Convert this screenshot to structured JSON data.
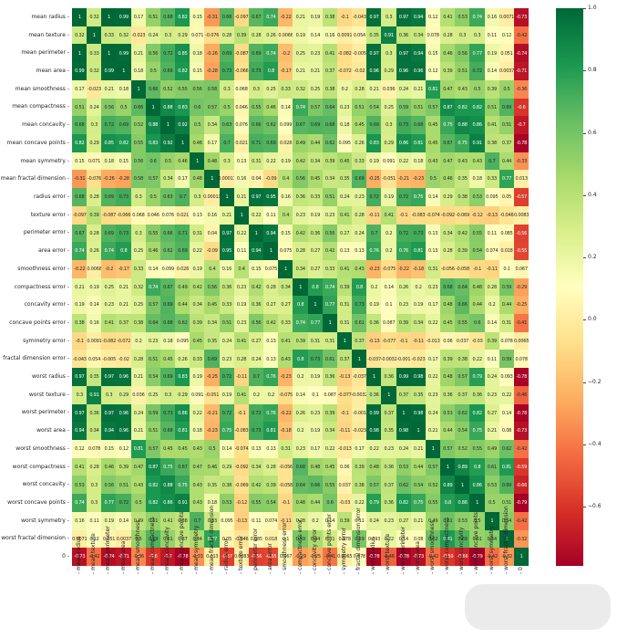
{
  "chart_data": {
    "type": "heatmap",
    "title": "",
    "colormap": "RdYlGn",
    "vmin": -0.79,
    "vmax": 1.0,
    "colorbar_ticks": [
      "1.0",
      "0.8",
      "0.6",
      "0.4",
      "0.2",
      "0.0",
      "−0.2",
      "−0.4",
      "−0.6"
    ],
    "colorbar_tick_values": [
      1.0,
      0.8,
      0.6,
      0.4,
      0.2,
      0.0,
      -0.2,
      -0.4,
      -0.6
    ],
    "labels": [
      "mean radius",
      "mean texture",
      "mean perimeter",
      "mean area",
      "mean smoothness",
      "mean compactness",
      "mean concavity",
      "mean concave points",
      "mean symmetry",
      "mean fractal dimension",
      "radius error",
      "texture error",
      "perimeter error",
      "area error",
      "smoothness error",
      "compactness error",
      "concavity error",
      "concave points error",
      "symmetry error",
      "fractal dimension error",
      "worst radius",
      "worst texture",
      "worst perimeter",
      "worst area",
      "worst smoothness",
      "worst compactness",
      "worst concavity",
      "worst concave points",
      "worst symmetry",
      "worst fractal dimension",
      "0"
    ],
    "matrix": [
      [
        1,
        0.32,
        1,
        0.99,
        0.17,
        0.51,
        0.68,
        0.82,
        0.15,
        -0.31,
        0.68,
        -0.097,
        0.67,
        0.74,
        -0.22,
        0.21,
        0.19,
        0.38,
        -0.1,
        -0.043,
        0.97,
        0.3,
        0.97,
        0.94,
        0.12,
        0.41,
        0.53,
        0.74,
        0.16,
        0.0071,
        -0.73
      ],
      [
        0.32,
        1,
        0.33,
        0.32,
        -0.023,
        0.24,
        0.3,
        0.29,
        0.071,
        -0.076,
        0.28,
        0.39,
        0.28,
        0.26,
        0.0066,
        0.19,
        0.14,
        0.16,
        0.0091,
        0.054,
        0.35,
        0.91,
        0.36,
        0.34,
        0.078,
        0.28,
        0.3,
        0.3,
        0.11,
        0.12,
        -0.42
      ],
      [
        1,
        0.33,
        1,
        0.99,
        0.21,
        0.56,
        0.72,
        0.85,
        0.18,
        -0.26,
        0.69,
        -0.087,
        0.69,
        0.74,
        -0.2,
        0.25,
        0.23,
        0.41,
        -0.082,
        -0.005,
        0.97,
        0.3,
        0.97,
        0.94,
        0.15,
        0.46,
        0.56,
        0.77,
        0.19,
        0.051,
        -0.74
      ],
      [
        0.99,
        0.32,
        0.99,
        1,
        0.18,
        0.5,
        0.69,
        0.82,
        0.15,
        -0.28,
        0.73,
        -0.066,
        0.73,
        0.8,
        -0.17,
        0.21,
        0.21,
        0.37,
        -0.072,
        -0.02,
        0.96,
        0.29,
        0.96,
        0.96,
        0.12,
        0.39,
        0.51,
        0.72,
        0.14,
        0.0037,
        -0.71
      ],
      [
        0.17,
        -0.023,
        0.21,
        0.18,
        1,
        0.66,
        0.52,
        0.55,
        0.56,
        0.58,
        0.3,
        0.068,
        0.3,
        0.25,
        0.33,
        0.32,
        0.25,
        0.38,
        0.2,
        0.28,
        0.21,
        0.036,
        0.24,
        0.21,
        0.81,
        0.47,
        0.43,
        0.5,
        0.39,
        0.5,
        -0.36
      ],
      [
        0.51,
        0.24,
        0.56,
        0.5,
        0.66,
        1,
        0.88,
        0.83,
        0.6,
        0.57,
        0.5,
        0.046,
        0.55,
        0.46,
        0.14,
        0.74,
        0.57,
        0.64,
        0.23,
        0.51,
        0.54,
        0.25,
        0.59,
        0.51,
        0.57,
        0.87,
        0.82,
        0.82,
        0.51,
        0.69,
        -0.6
      ],
      [
        0.68,
        0.3,
        0.72,
        0.69,
        0.52,
        0.88,
        1,
        0.92,
        0.5,
        0.34,
        0.63,
        0.076,
        0.66,
        0.62,
        0.099,
        0.67,
        0.69,
        0.68,
        0.18,
        0.45,
        0.69,
        0.3,
        0.73,
        0.68,
        0.45,
        0.75,
        0.88,
        0.86,
        0.41,
        0.51,
        -0.7
      ],
      [
        0.82,
        0.29,
        0.85,
        0.82,
        0.55,
        0.83,
        0.92,
        1,
        0.46,
        0.17,
        0.7,
        0.021,
        0.71,
        0.69,
        0.028,
        0.49,
        0.44,
        0.62,
        0.095,
        0.26,
        0.83,
        0.29,
        0.86,
        0.81,
        0.45,
        0.67,
        0.75,
        0.91,
        0.38,
        0.37,
        -0.78
      ],
      [
        0.15,
        0.071,
        0.18,
        0.15,
        0.56,
        0.6,
        0.5,
        0.46,
        1,
        0.48,
        0.3,
        0.13,
        0.31,
        0.22,
        0.19,
        0.42,
        0.34,
        0.39,
        0.45,
        0.33,
        0.19,
        0.091,
        0.22,
        0.18,
        0.43,
        0.47,
        0.43,
        0.43,
        0.7,
        0.44,
        -0.33
      ],
      [
        -0.31,
        -0.076,
        -0.26,
        -0.28,
        0.58,
        0.57,
        0.34,
        0.17,
        0.48,
        1,
        0.00011,
        0.16,
        0.04,
        -0.09,
        0.4,
        0.56,
        0.45,
        0.34,
        0.35,
        0.69,
        -0.25,
        -0.051,
        -0.21,
        -0.23,
        0.5,
        0.46,
        0.35,
        0.18,
        0.33,
        0.77,
        0.013
      ],
      [
        0.68,
        0.28,
        0.69,
        0.73,
        0.3,
        0.5,
        0.63,
        0.7,
        0.3,
        0.00011,
        1,
        0.21,
        0.97,
        0.95,
        0.16,
        0.36,
        0.33,
        0.51,
        0.24,
        0.23,
        0.72,
        0.19,
        0.72,
        0.75,
        0.14,
        0.29,
        0.38,
        0.53,
        0.095,
        0.05,
        -0.57
      ],
      [
        -0.097,
        0.39,
        -0.087,
        -0.066,
        0.068,
        0.046,
        0.076,
        0.021,
        0.13,
        0.16,
        0.21,
        1,
        0.22,
        0.11,
        0.4,
        0.23,
        0.19,
        0.23,
        0.41,
        0.28,
        -0.11,
        0.41,
        -0.1,
        -0.083,
        -0.074,
        -0.092,
        -0.069,
        -0.12,
        -0.13,
        -0.046,
        0.0083
      ],
      [
        0.67,
        0.28,
        0.69,
        0.73,
        0.3,
        0.55,
        0.66,
        0.71,
        0.31,
        0.04,
        0.97,
        0.22,
        1,
        0.94,
        0.15,
        0.42,
        0.36,
        0.56,
        0.27,
        0.24,
        0.7,
        0.2,
        0.72,
        0.73,
        0.13,
        0.34,
        0.42,
        0.55,
        0.11,
        0.085,
        -0.56
      ],
      [
        0.74,
        0.26,
        0.74,
        0.8,
        0.25,
        0.46,
        0.62,
        0.69,
        0.22,
        -0.09,
        0.95,
        0.11,
        0.94,
        1,
        0.075,
        0.28,
        0.27,
        0.42,
        0.13,
        0.13,
        0.76,
        0.2,
        0.76,
        0.81,
        0.13,
        0.28,
        0.39,
        0.54,
        0.074,
        0.018,
        -0.55
      ],
      [
        -0.22,
        0.0066,
        -0.2,
        -0.17,
        0.33,
        0.14,
        0.099,
        0.028,
        0.19,
        0.4,
        0.16,
        0.4,
        0.15,
        0.075,
        1,
        0.34,
        0.27,
        0.33,
        0.41,
        0.43,
        -0.23,
        -0.075,
        -0.22,
        -0.18,
        0.31,
        -0.056,
        -0.058,
        -0.1,
        -0.11,
        0.1,
        0.067
      ],
      [
        0.21,
        0.19,
        0.25,
        0.21,
        0.32,
        0.74,
        0.67,
        0.49,
        0.42,
        0.56,
        0.36,
        0.23,
        0.42,
        0.28,
        0.34,
        1,
        0.8,
        0.74,
        0.39,
        0.8,
        0.2,
        0.14,
        0.26,
        0.2,
        0.23,
        0.68,
        0.64,
        0.48,
        0.28,
        0.59,
        -0.29
      ],
      [
        0.19,
        0.14,
        0.23,
        0.21,
        0.25,
        0.57,
        0.69,
        0.44,
        0.34,
        0.45,
        0.33,
        0.19,
        0.36,
        0.27,
        0.27,
        0.8,
        1,
        0.77,
        0.31,
        0.73,
        0.19,
        0.1,
        0.23,
        0.19,
        0.17,
        0.48,
        0.66,
        0.44,
        0.2,
        0.44,
        -0.25
      ],
      [
        0.38,
        0.16,
        0.41,
        0.37,
        0.38,
        0.64,
        0.68,
        0.62,
        0.39,
        0.34,
        0.51,
        0.23,
        0.56,
        0.42,
        0.33,
        0.74,
        0.77,
        1,
        0.31,
        0.61,
        0.36,
        0.087,
        0.39,
        0.34,
        0.22,
        0.45,
        0.55,
        0.6,
        0.14,
        0.31,
        -0.41
      ],
      [
        -0.1,
        0.0091,
        -0.082,
        -0.072,
        0.2,
        0.23,
        0.18,
        0.095,
        0.45,
        0.35,
        0.24,
        0.41,
        0.27,
        0.13,
        0.41,
        0.39,
        0.31,
        0.31,
        1,
        0.37,
        -0.13,
        -0.077,
        -0.1,
        -0.11,
        -0.013,
        0.06,
        0.037,
        -0.03,
        0.39,
        0.078,
        0.0065
      ],
      [
        -0.043,
        0.054,
        -0.005,
        -0.02,
        0.28,
        0.51,
        0.45,
        0.26,
        0.33,
        0.69,
        0.23,
        0.28,
        0.24,
        0.13,
        0.43,
        0.8,
        0.73,
        0.61,
        0.37,
        1,
        -0.037,
        -0.0032,
        -0.001,
        -0.023,
        0.17,
        0.39,
        0.38,
        0.22,
        0.11,
        0.59,
        0.078
      ],
      [
        0.97,
        0.35,
        0.97,
        0.96,
        0.21,
        0.54,
        0.69,
        0.83,
        0.19,
        -0.25,
        0.72,
        -0.11,
        0.7,
        0.76,
        -0.23,
        0.2,
        0.19,
        0.36,
        -0.13,
        -0.037,
        1,
        0.36,
        0.99,
        0.98,
        0.22,
        0.48,
        0.57,
        0.79,
        0.24,
        0.093,
        -0.78
      ],
      [
        0.3,
        0.91,
        0.3,
        0.29,
        0.036,
        0.25,
        0.3,
        0.29,
        0.091,
        -0.051,
        0.19,
        0.41,
        0.2,
        0.2,
        -0.075,
        0.14,
        0.1,
        0.087,
        -0.077,
        -0.0032,
        0.36,
        1,
        0.37,
        0.35,
        0.23,
        0.36,
        0.37,
        0.36,
        0.23,
        0.22,
        -0.46
      ],
      [
        0.97,
        0.36,
        0.97,
        0.96,
        0.24,
        0.59,
        0.73,
        0.86,
        0.22,
        -0.21,
        0.72,
        -0.1,
        0.72,
        0.76,
        -0.22,
        0.26,
        0.23,
        0.39,
        -0.1,
        -0.001,
        0.99,
        0.37,
        1,
        0.98,
        0.24,
        0.53,
        0.62,
        0.82,
        0.27,
        0.14,
        -0.78
      ],
      [
        0.94,
        0.34,
        0.94,
        0.96,
        0.21,
        0.51,
        0.68,
        0.81,
        0.18,
        -0.23,
        0.75,
        -0.083,
        0.73,
        0.81,
        -0.18,
        0.2,
        0.19,
        0.34,
        -0.11,
        -0.023,
        0.98,
        0.35,
        0.98,
        1,
        0.21,
        0.44,
        0.54,
        0.75,
        0.21,
        0.08,
        -0.73
      ],
      [
        0.12,
        0.078,
        0.15,
        0.12,
        0.81,
        0.57,
        0.45,
        0.45,
        0.43,
        0.5,
        0.14,
        -0.074,
        0.13,
        0.13,
        0.31,
        0.23,
        0.17,
        0.22,
        -0.013,
        0.17,
        0.22,
        0.23,
        0.24,
        0.21,
        1,
        0.57,
        0.52,
        0.55,
        0.49,
        0.62,
        -0.42
      ],
      [
        0.41,
        0.28,
        0.46,
        0.39,
        0.47,
        0.87,
        0.75,
        0.67,
        0.47,
        0.46,
        0.29,
        -0.092,
        0.34,
        0.28,
        -0.056,
        0.68,
        0.48,
        0.45,
        0.06,
        0.39,
        0.48,
        0.36,
        0.53,
        0.44,
        0.57,
        1,
        0.89,
        0.8,
        0.61,
        0.81,
        -0.59
      ],
      [
        0.53,
        0.3,
        0.56,
        0.51,
        0.43,
        0.82,
        0.88,
        0.75,
        0.43,
        0.35,
        0.38,
        -0.069,
        0.42,
        0.39,
        -0.058,
        0.64,
        0.66,
        0.55,
        0.037,
        0.38,
        0.57,
        0.37,
        0.62,
        0.54,
        0.52,
        0.89,
        1,
        0.86,
        0.53,
        0.69,
        -0.66
      ],
      [
        0.74,
        0.3,
        0.77,
        0.72,
        0.5,
        0.82,
        0.86,
        0.91,
        0.43,
        0.18,
        0.53,
        -0.12,
        0.55,
        0.54,
        -0.1,
        0.48,
        0.44,
        0.6,
        -0.03,
        0.22,
        0.79,
        0.36,
        0.82,
        0.75,
        0.55,
        0.8,
        0.86,
        1,
        0.5,
        0.51,
        -0.79
      ],
      [
        0.16,
        0.11,
        0.19,
        0.14,
        0.39,
        0.51,
        0.41,
        0.38,
        0.7,
        0.33,
        0.095,
        -0.13,
        0.11,
        0.074,
        -0.11,
        0.28,
        0.2,
        0.14,
        0.39,
        0.11,
        0.24,
        0.23,
        0.27,
        0.21,
        0.49,
        0.61,
        0.53,
        0.5,
        1,
        0.54,
        -0.42
      ],
      [
        0.0071,
        0.12,
        0.051,
        0.0037,
        0.5,
        0.69,
        0.51,
        0.37,
        0.44,
        0.77,
        0.05,
        -0.046,
        0.085,
        0.018,
        0.1,
        0.59,
        0.44,
        0.31,
        0.078,
        0.59,
        0.093,
        0.22,
        0.14,
        0.08,
        0.62,
        0.81,
        0.69,
        0.51,
        0.54,
        1,
        -0.32
      ],
      [
        -0.73,
        -0.42,
        -0.74,
        -0.71,
        -0.36,
        -0.6,
        -0.7,
        -0.78,
        -0.33,
        0.013,
        -0.57,
        0.0083,
        -0.56,
        -0.55,
        0.067,
        -0.29,
        -0.25,
        -0.41,
        0.0065,
        0.078,
        -0.78,
        -0.46,
        -0.78,
        -0.73,
        -0.42,
        -0.59,
        -0.66,
        -0.79,
        -0.42,
        -0.32,
        1
      ]
    ],
    "grid": false,
    "legend_position": "right colorbar"
  }
}
